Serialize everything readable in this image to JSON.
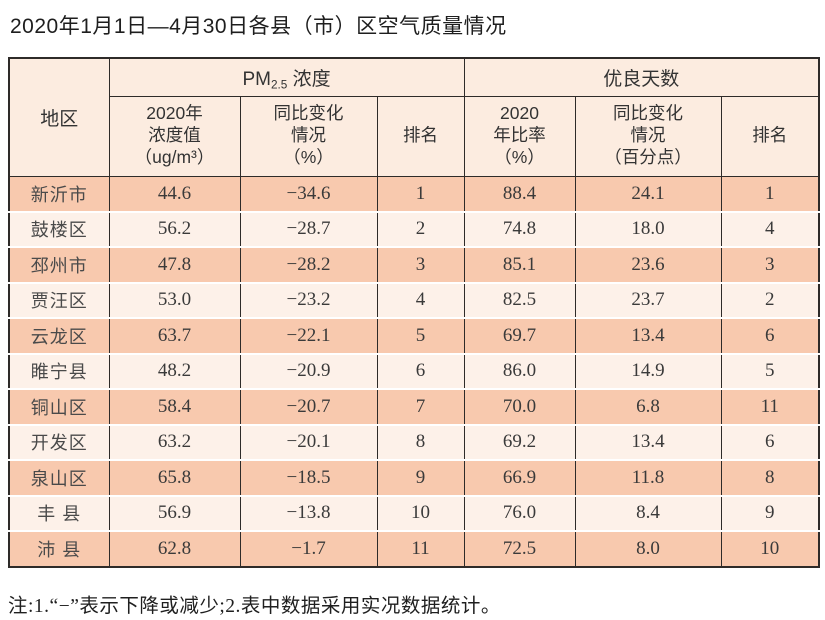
{
  "title": "2020年1月1日—4月30日各县（市）区空气质量情况",
  "table": {
    "region_header": "地区",
    "group_pm": {
      "prefix": "PM",
      "sub": "2.5",
      "suffix": " 浓度"
    },
    "group_good_days": "优良天数",
    "subheaders": [
      "2020年\n浓度值\n（ug/m³）",
      "同比变化\n情况\n（%）",
      "排名",
      "2020\n年比率\n（%）",
      "同比变化\n情况\n（百分点）",
      "排名"
    ],
    "rows": [
      {
        "region": "新沂市",
        "values": [
          "44.6",
          "−34.6",
          "1",
          "88.4",
          "24.1",
          "1"
        ]
      },
      {
        "region": "鼓楼区",
        "values": [
          "56.2",
          "−28.7",
          "2",
          "74.8",
          "18.0",
          "4"
        ]
      },
      {
        "region": "邳州市",
        "values": [
          "47.8",
          "−28.2",
          "3",
          "85.1",
          "23.6",
          "3"
        ]
      },
      {
        "region": "贾汪区",
        "values": [
          "53.0",
          "−23.2",
          "4",
          "82.5",
          "23.7",
          "2"
        ]
      },
      {
        "region": "云龙区",
        "values": [
          "63.7",
          "−22.1",
          "5",
          "69.7",
          "13.4",
          "6"
        ]
      },
      {
        "region": "睢宁县",
        "values": [
          "48.2",
          "−20.9",
          "6",
          "86.0",
          "14.9",
          "5"
        ]
      },
      {
        "region": "铜山区",
        "values": [
          "58.4",
          "−20.7",
          "7",
          "70.0",
          "6.8",
          "11"
        ]
      },
      {
        "region": "开发区",
        "values": [
          "63.2",
          "−20.1",
          "8",
          "69.2",
          "13.4",
          "6"
        ]
      },
      {
        "region": "泉山区",
        "values": [
          "65.8",
          "−18.5",
          "9",
          "66.9",
          "11.8",
          "8"
        ]
      },
      {
        "region": "丰 县",
        "values": [
          "56.9",
          "−13.8",
          "10",
          "76.0",
          "8.4",
          "9"
        ]
      },
      {
        "region": "沛 县",
        "values": [
          "62.8",
          "−1.7",
          "11",
          "72.5",
          "8.0",
          "10"
        ]
      }
    ]
  },
  "note": "注:1.“−”表示下降或减少;2.表中数据采用实况数据统计。",
  "colors": {
    "row_odd": "#f8c9ae",
    "row_even": "#fdf1e9",
    "header_bg": "#fcece0",
    "border": "#2e2b29"
  }
}
